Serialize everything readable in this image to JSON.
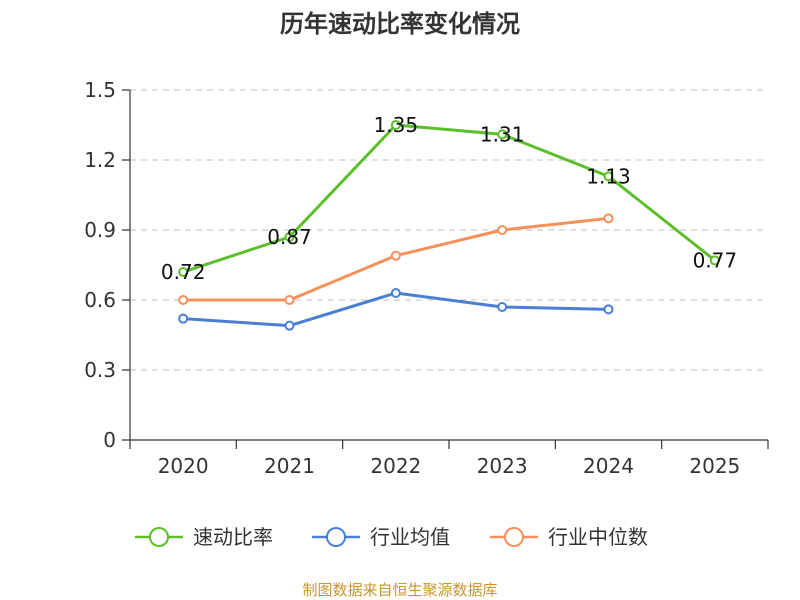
{
  "chart_data": {
    "type": "line",
    "title": "历年速动比率变化情况",
    "categories": [
      "2020",
      "2021",
      "2022",
      "2023",
      "2024",
      "2025"
    ],
    "ylim": [
      0,
      1.5
    ],
    "yticks": [
      0,
      0.3,
      0.6,
      0.9,
      1.2,
      1.5
    ],
    "ytick_labels": [
      "0",
      "0.3",
      "0.6",
      "0.9",
      "1.2",
      "1.5"
    ],
    "grid": true,
    "legend_position": "bottom",
    "series": [
      {
        "name": "速动比率",
        "color": "#5cbf2a",
        "values": [
          0.72,
          0.87,
          1.35,
          1.31,
          1.13,
          0.77
        ],
        "labels": [
          "0.72",
          "0.87",
          "1.35",
          "1.31",
          "1.13",
          "0.77"
        ]
      },
      {
        "name": "行业均值",
        "color": "#4a7fd4",
        "values": [
          0.52,
          0.49,
          0.63,
          0.57,
          0.56,
          null
        ]
      },
      {
        "name": "行业中位数",
        "color": "#f5905a",
        "values": [
          0.6,
          0.6,
          0.79,
          0.9,
          0.95,
          null
        ]
      }
    ],
    "source": "制图数据来自恒生聚源数据库"
  }
}
